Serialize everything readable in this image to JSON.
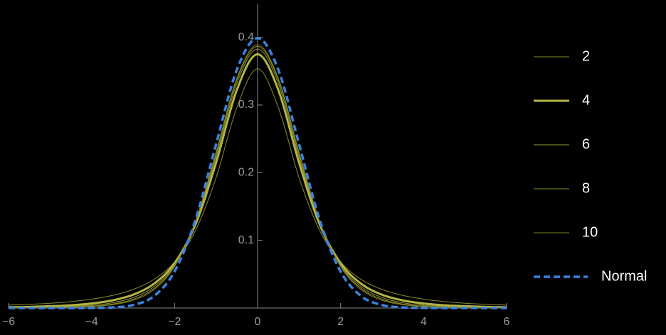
{
  "chart_data": {
    "type": "line",
    "x": [
      -6,
      -5.5,
      -5,
      -4.5,
      -4,
      -3.5,
      -3,
      -2.5,
      -2,
      -1.5,
      -1,
      -0.5,
      0,
      0.5,
      1,
      1.5,
      2,
      2.5,
      3,
      3.5,
      4,
      4.5,
      5,
      5.5,
      6
    ],
    "series": [
      {
        "name": "2",
        "color": "#8c8a2c",
        "line_width": 1,
        "values": [
          0.0043,
          0.0055,
          0.0071,
          0.0095,
          0.0131,
          0.0186,
          0.0274,
          0.0422,
          0.068,
          0.1141,
          0.1925,
          0.2963,
          0.3536,
          0.2963,
          0.1925,
          0.1141,
          0.068,
          0.0422,
          0.0274,
          0.0186,
          0.0131,
          0.0095,
          0.0071,
          0.0055,
          0.0043
        ]
      },
      {
        "name": "4",
        "color": "#b4b544",
        "line_width": 3,
        "values": [
          0.0012,
          0.0017,
          0.0027,
          0.0041,
          0.0067,
          0.0113,
          0.0197,
          0.0357,
          0.0663,
          0.1229,
          0.2147,
          0.3223,
          0.375,
          0.3223,
          0.2147,
          0.1229,
          0.0663,
          0.0357,
          0.0197,
          0.0113,
          0.0067,
          0.0041,
          0.0027,
          0.0017,
          0.0012
        ]
      },
      {
        "name": "6",
        "color": "#9a9a30",
        "line_width": 1,
        "values": [
          0.0004,
          0.0007,
          0.0012,
          0.0022,
          0.0041,
          0.0078,
          0.0155,
          0.0315,
          0.064,
          0.1255,
          0.2231,
          0.3318,
          0.3827,
          0.3318,
          0.2231,
          0.1255,
          0.064,
          0.0315,
          0.0155,
          0.0078,
          0.0041,
          0.0022,
          0.0012,
          0.0007,
          0.0004
        ]
      },
      {
        "name": "8",
        "color": "#8f8f2e",
        "line_width": 1,
        "values": [
          0.0002,
          0.0003,
          0.0007,
          0.0013,
          0.0028,
          0.0059,
          0.013,
          0.0288,
          0.0624,
          0.1267,
          0.2276,
          0.3367,
          0.3867,
          0.3367,
          0.2276,
          0.1267,
          0.0624,
          0.0288,
          0.013,
          0.0059,
          0.0028,
          0.0013,
          0.0007,
          0.0003,
          0.0002
        ]
      },
      {
        "name": "10",
        "color": "#7f7f28",
        "line_width": 1,
        "values": [
          0.0001,
          0.0002,
          0.0004,
          0.0009,
          0.002,
          0.0048,
          0.0114,
          0.0269,
          0.0612,
          0.1274,
          0.2304,
          0.3397,
          0.3891,
          0.3397,
          0.2304,
          0.1274,
          0.0612,
          0.0269,
          0.0114,
          0.0048,
          0.002,
          0.0009,
          0.0004,
          0.0002,
          0.0001
        ]
      },
      {
        "name": "Normal",
        "color": "#3b82e0",
        "line_width": 3.5,
        "dashed": true,
        "values": [
          0,
          0,
          0,
          0,
          0.0001,
          0.0009,
          0.0044,
          0.0175,
          0.054,
          0.1295,
          0.242,
          0.3521,
          0.3989,
          0.3521,
          0.242,
          0.1295,
          0.054,
          0.0175,
          0.0044,
          0.0009,
          0.0001,
          0,
          0,
          0,
          0
        ]
      }
    ],
    "xlim": [
      -6,
      6
    ],
    "ylim": [
      0,
      0.45
    ],
    "xticks": [
      {
        "value": -6,
        "label": "−6"
      },
      {
        "value": -4,
        "label": "−4"
      },
      {
        "value": -2,
        "label": "−2"
      },
      0,
      2,
      4,
      6
    ],
    "yticks": [
      0.1,
      0.2,
      0.3,
      0.4
    ],
    "legend": "right"
  }
}
